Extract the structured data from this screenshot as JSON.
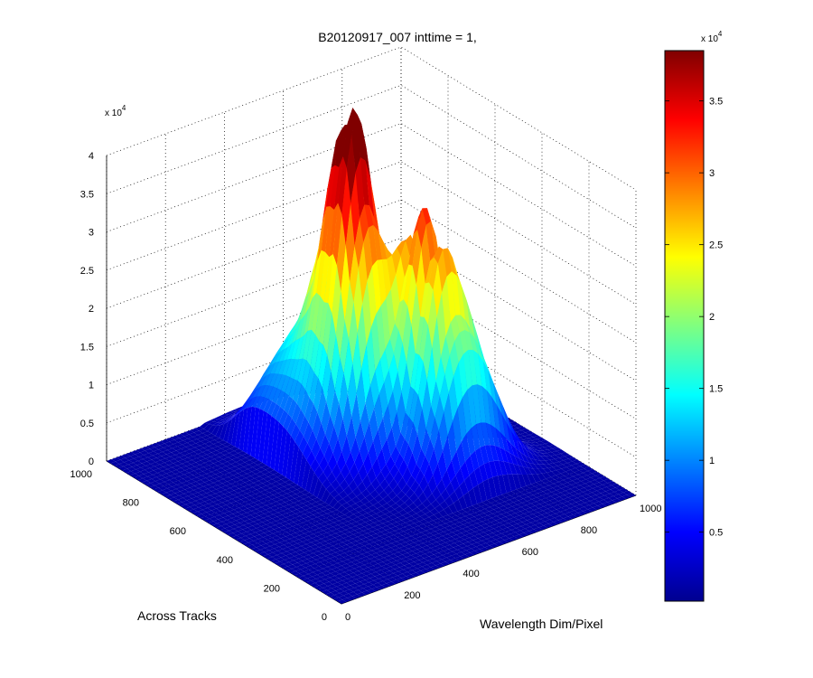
{
  "chart_data": {
    "type": "surface3d",
    "title": "B20120917_007 inttime = 1,",
    "xlabel": "Wavelength Dim/Pixel",
    "ylabel": "Across Tracks",
    "zlabel": "",
    "x_ticks": [
      "0",
      "200",
      "400",
      "600",
      "800",
      "1000"
    ],
    "y_ticks": [
      "0",
      "200",
      "400",
      "600",
      "800",
      "1000"
    ],
    "z_ticks": [
      "0",
      "0.5",
      "1",
      "1.5",
      "2",
      "2.5",
      "3",
      "3.5",
      "4"
    ],
    "z_multiplier": {
      "base": "x 10",
      "exponent": "4"
    },
    "xlim": [
      0,
      1000
    ],
    "ylim": [
      0,
      1000
    ],
    "zlim": [
      0,
      40000
    ],
    "grid": true,
    "colormap": "jet",
    "colorbar": {
      "ticks": [
        "0.5",
        "1",
        "1.5",
        "2",
        "2.5",
        "3",
        "3.5"
      ],
      "multiplier": {
        "base": "x 10",
        "exponent": "4"
      },
      "range": [
        200,
        38500
      ]
    },
    "peaks": [
      {
        "x": 520,
        "y": 600,
        "z": 38500
      },
      {
        "x": 640,
        "y": 480,
        "z": 29000
      },
      {
        "x": 690,
        "y": 380,
        "z": 21000
      }
    ]
  }
}
